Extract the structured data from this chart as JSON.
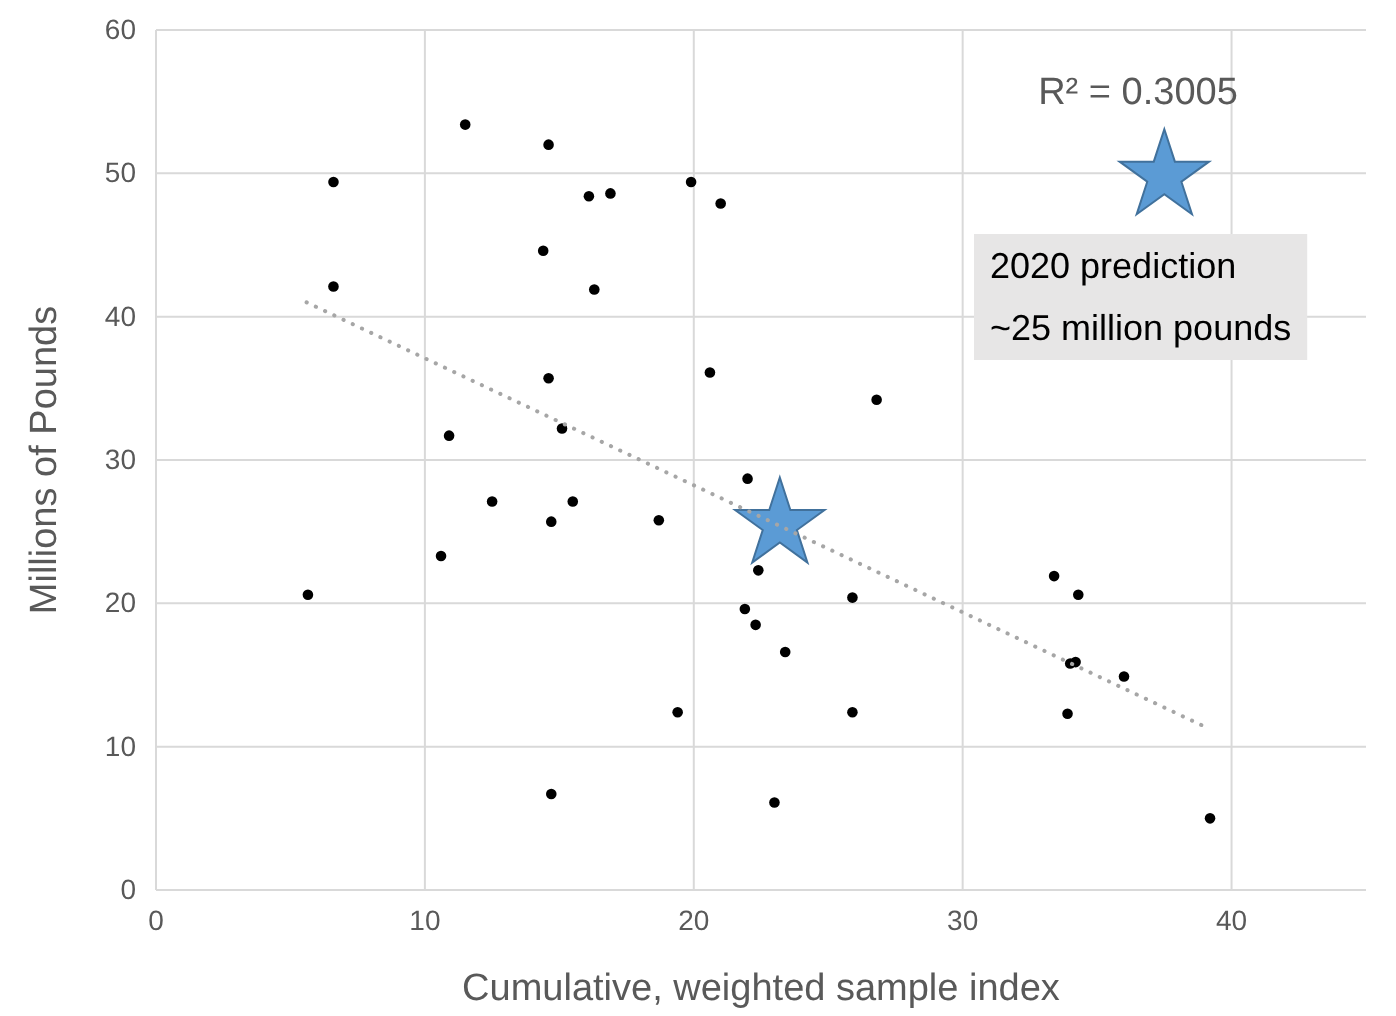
{
  "chart_data": {
    "type": "scatter",
    "xlabel": "Cumulative, weighted sample index",
    "ylabel": "Millions of Pounds",
    "xlim": [
      0,
      45
    ],
    "xticks": [
      0,
      10,
      20,
      30,
      40
    ],
    "ylim": [
      0,
      60
    ],
    "yticks": [
      0,
      10,
      20,
      30,
      40,
      50,
      60
    ],
    "grid": true,
    "annotations": [
      "R² = 0.3005",
      "2020 prediction\n~25 million pounds"
    ],
    "series": [
      {
        "color": "#000000",
        "marker": "circle",
        "x": [
          5.65,
          6.6,
          6.6,
          11.5,
          14.6,
          14.4,
          14.6,
          15.1,
          10.9,
          12.5,
          15.5,
          14.7,
          10.6,
          18.7,
          14.7,
          16.1,
          16.9,
          19.9,
          21.0,
          16.3,
          20.6,
          26.8,
          22.0,
          22.4,
          21.9,
          22.3,
          23.4,
          19.4,
          25.9,
          25.9,
          23.0,
          33.4,
          34.3,
          34.0,
          34.2,
          36.0,
          33.9,
          39.2
        ],
        "values": [
          20.6,
          49.4,
          42.1,
          53.4,
          52.0,
          44.6,
          35.7,
          32.2,
          31.7,
          27.1,
          27.1,
          25.7,
          23.3,
          25.8,
          6.7,
          48.4,
          48.6,
          49.4,
          47.9,
          41.9,
          36.1,
          34.2,
          28.7,
          22.3,
          19.6,
          18.5,
          16.6,
          12.4,
          20.4,
          12.4,
          6.1,
          21.9,
          20.6,
          15.8,
          15.9,
          14.9,
          12.3,
          5.0
        ]
      },
      {
        "color": "#5b9bd5",
        "marker": "star",
        "x": [
          23.2,
          37.5
        ],
        "values": [
          25.5,
          49.8
        ]
      },
      {
        "type": "line",
        "color": "#a6a6a6",
        "marker": "none",
        "line_style": "dotted",
        "x": [
          5.6,
          39.0
        ],
        "values": [
          41.0,
          11.4
        ]
      }
    ]
  }
}
